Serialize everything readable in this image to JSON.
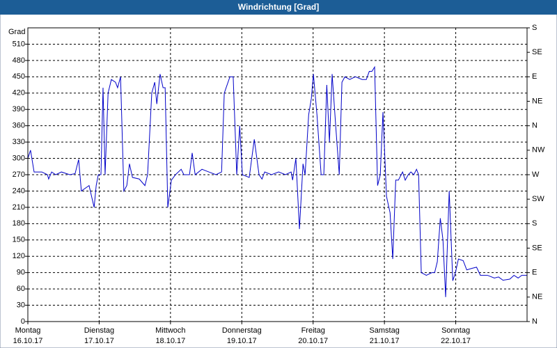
{
  "chart_data": {
    "type": "line",
    "title": "Windrichtung [Grad]",
    "y_label": "Grad",
    "color": "#0000c8",
    "grid": true,
    "xlim": [
      0,
      168
    ],
    "ylim": [
      0,
      540
    ],
    "y2lim": [
      0,
      540
    ],
    "xticks": [
      {
        "value": 0,
        "label": "Montag"
      },
      {
        "value": 24,
        "label": "Dienstag"
      },
      {
        "value": 48,
        "label": "Mittwoch"
      },
      {
        "value": 72,
        "label": "Donnerstag"
      },
      {
        "value": 96,
        "label": "Freitag"
      },
      {
        "value": 120,
        "label": "Samstag"
      },
      {
        "value": 144,
        "label": "Sonntag"
      }
    ],
    "xtick_dates": [
      "16.10.17",
      "17.10.17",
      "18.10.17",
      "19.10.17",
      "20.10.17",
      "21.10.17",
      "22.10.17"
    ],
    "yticks": [
      0,
      30,
      60,
      90,
      120,
      150,
      180,
      210,
      240,
      270,
      300,
      330,
      360,
      390,
      420,
      450,
      480,
      510
    ],
    "y2ticks": [
      {
        "value": 0,
        "label": "N"
      },
      {
        "value": 45,
        "label": "NE"
      },
      {
        "value": 90,
        "label": "E"
      },
      {
        "value": 135,
        "label": "SE"
      },
      {
        "value": 180,
        "label": "S"
      },
      {
        "value": 225,
        "label": "SW"
      },
      {
        "value": 270,
        "label": "W"
      },
      {
        "value": 315,
        "label": "NW"
      },
      {
        "value": 360,
        "label": "N"
      },
      {
        "value": 405,
        "label": "NE"
      },
      {
        "value": 450,
        "label": "E"
      },
      {
        "value": 495,
        "label": "SE"
      },
      {
        "value": 540,
        "label": "S"
      }
    ],
    "x": [
      0,
      0.9,
      2.1,
      4.7,
      6.6,
      7.0,
      8.0,
      9.4,
      11.3,
      14.1,
      15.9,
      17.1,
      18.0,
      20.6,
      22.3,
      23.0,
      23.7,
      24.6,
      25.3,
      26.0,
      27.0,
      28.1,
      29.5,
      30.2,
      31.2,
      32.3,
      33.3,
      34.2,
      35.2,
      37.5,
      39.4,
      40.3,
      41.7,
      42.7,
      43.4,
      44.5,
      45.5,
      46.2,
      47.1,
      48.3,
      49.7,
      51.6,
      52.5,
      54.4,
      55.3,
      56.3,
      58.6,
      60.9,
      63.3,
      65.2,
      66.1,
      68.0,
      69.1,
      70.3,
      71.3,
      72.2,
      74.5,
      76.2,
      77.8,
      78.8,
      79.7,
      82.0,
      84.4,
      86.7,
      88.6,
      89.1,
      90.2,
      91.4,
      92.6,
      93.3,
      94.5,
      95.4,
      96.1,
      97.3,
      98.7,
      99.6,
      100.6,
      101.5,
      102.4,
      103.6,
      104.8,
      105.7,
      106.7,
      108.3,
      110.2,
      112.5,
      113.9,
      114.9,
      115.8,
      116.7,
      117.7,
      118.6,
      119.5,
      120.7,
      121.9,
      122.8,
      123.8,
      124.7,
      126.1,
      127.0,
      128.0,
      128.9,
      129.9,
      130.8,
      131.5,
      132.4,
      134.1,
      136.0,
      136.9,
      137.8,
      138.8,
      139.7,
      140.6,
      141.8,
      143.0,
      143.9,
      144.9,
      146.5,
      147.7,
      149.6,
      151.0,
      152.3,
      154.7,
      157.0,
      158.4,
      159.9,
      162.2,
      163.6,
      165.0,
      166.2,
      168
    ],
    "values": [
      300,
      315,
      275,
      275,
      270,
      262,
      275,
      270,
      275,
      270,
      272,
      298,
      240,
      250,
      210,
      250,
      270,
      270,
      430,
      270,
      420,
      445,
      440,
      430,
      450,
      240,
      250,
      290,
      265,
      262,
      250,
      270,
      420,
      440,
      400,
      455,
      430,
      430,
      210,
      260,
      270,
      280,
      270,
      270,
      310,
      270,
      280,
      275,
      270,
      275,
      420,
      450,
      450,
      270,
      360,
      270,
      265,
      335,
      270,
      262,
      275,
      270,
      275,
      270,
      275,
      260,
      300,
      170,
      290,
      270,
      380,
      410,
      455,
      380,
      270,
      270,
      435,
      330,
      455,
      360,
      270,
      440,
      450,
      445,
      450,
      445,
      445,
      460,
      460,
      468,
      250,
      270,
      385,
      230,
      200,
      115,
      260,
      260,
      275,
      260,
      270,
      275,
      270,
      280,
      270,
      90,
      85,
      90,
      90,
      110,
      190,
      150,
      45,
      240,
      75,
      90,
      115,
      112,
      95,
      98,
      100,
      85,
      85,
      80,
      82,
      76,
      78,
      85,
      80,
      85,
      85
    ]
  }
}
